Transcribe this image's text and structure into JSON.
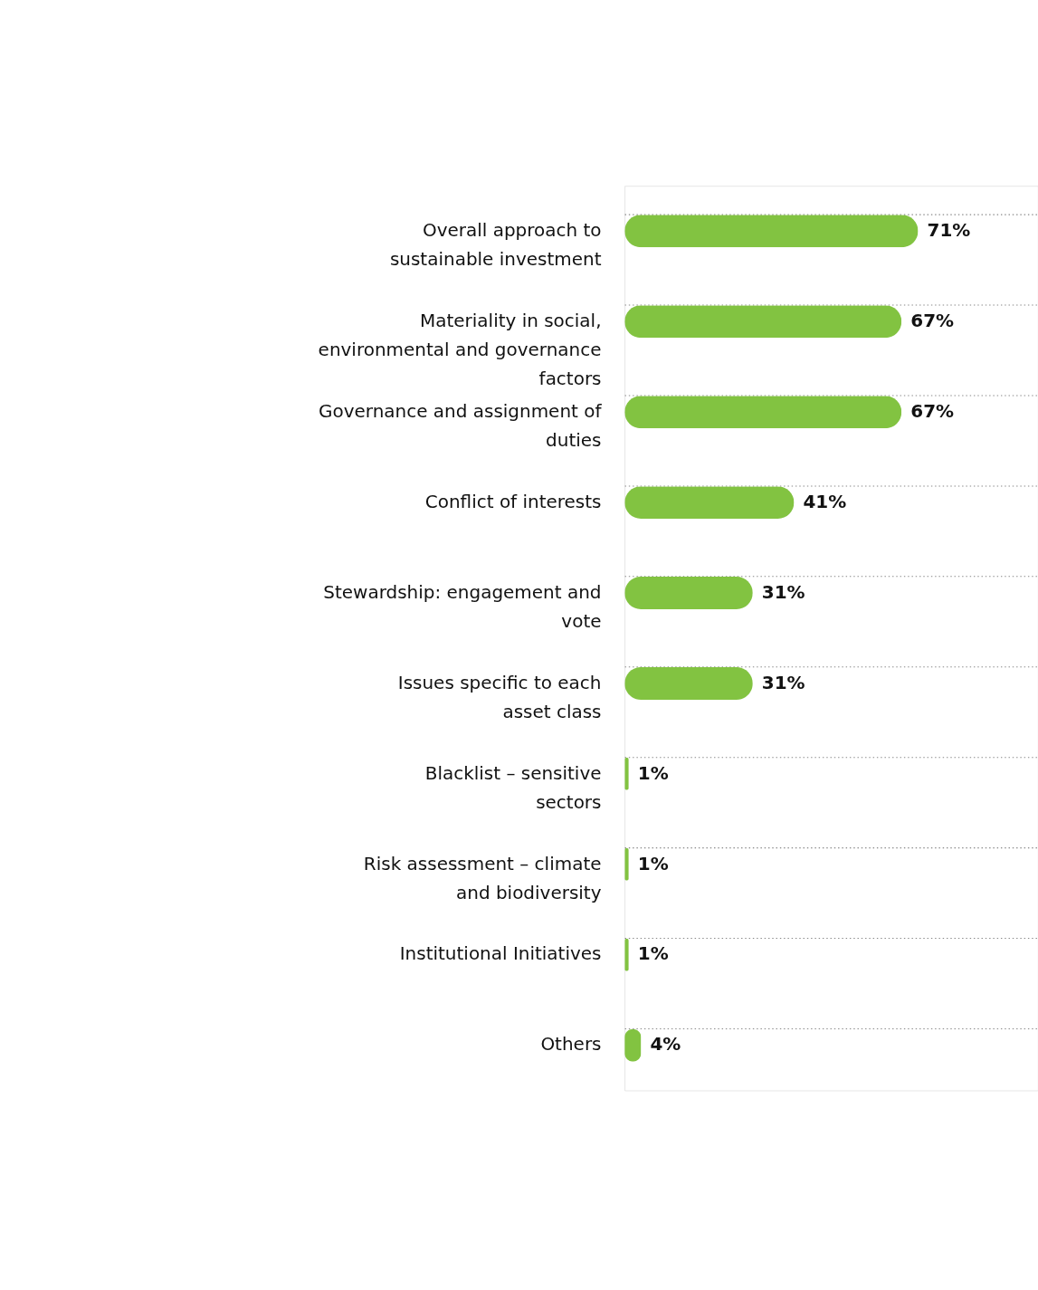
{
  "chart_data": {
    "type": "bar",
    "orientation": "horizontal",
    "categories": [
      "Overall approach to sustainable investment",
      "Materiality in social, environmental and governance factors",
      "Governance and assignment of duties",
      "Conflict of interests",
      "Stewardship: engagement and vote",
      "Issues specific to each asset class",
      "Blacklist – sensitive sectors",
      "Risk assessment – climate and biodiversity",
      "Institutional Initiatives",
      "Others"
    ],
    "values": [
      71,
      67,
      67,
      41,
      31,
      31,
      1,
      1,
      1,
      4
    ],
    "value_labels": [
      "71%",
      "67%",
      "67%",
      "41%",
      "31%",
      "31%",
      "1%",
      "1%",
      "1%",
      "4%"
    ],
    "color": "#82c341",
    "xlim": [
      0,
      100
    ],
    "tick_labels": "y",
    "grid": "y"
  }
}
